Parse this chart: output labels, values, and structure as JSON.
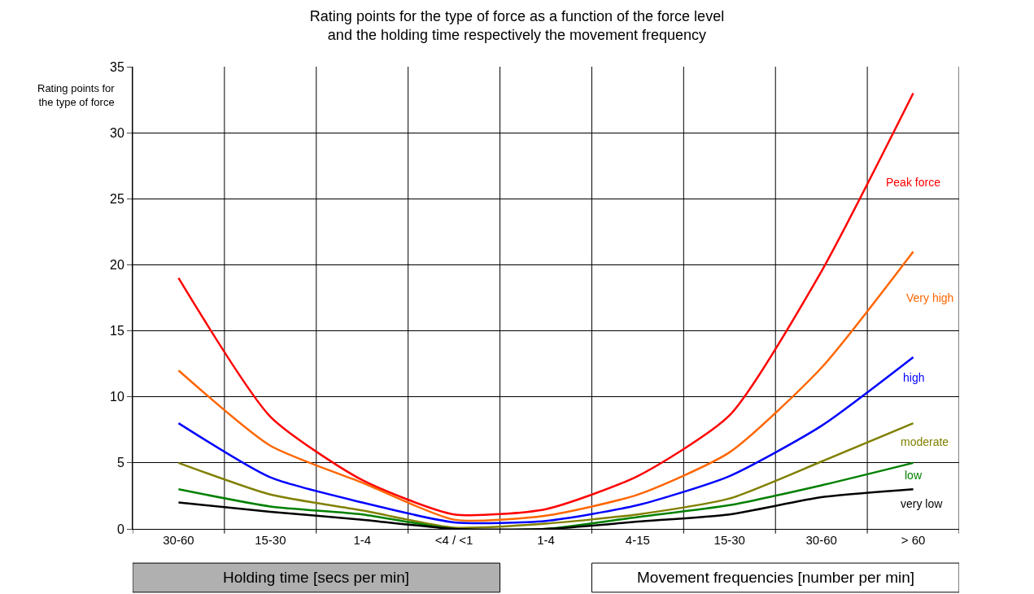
{
  "chart_data": {
    "type": "line",
    "title": "Rating points for the type of force as a function of the force level\nand the holding time respectively the movement frequency",
    "ylabel": "Rating points for\nthe type of force",
    "categories": [
      "30-60",
      "15-30",
      "1-4",
      "<4 / <1",
      "1-4",
      "4-15",
      "15-30",
      "30-60",
      "> 60"
    ],
    "series": [
      {
        "name": "Peak force",
        "color": "#ff0000",
        "values": [
          19,
          8.5,
          3.7,
          1.1,
          1.5,
          4,
          8.6,
          19.5,
          33
        ]
      },
      {
        "name": "Very high",
        "color": "#ff6600",
        "values": [
          12,
          6.3,
          3.5,
          0.7,
          1,
          2.6,
          5.8,
          12.2,
          21
        ]
      },
      {
        "name": "high",
        "color": "#0000ff",
        "values": [
          8,
          3.9,
          2,
          0.5,
          0.6,
          1.8,
          4,
          7.8,
          13
        ]
      },
      {
        "name": "moderate",
        "color": "#808000",
        "values": [
          5,
          2.6,
          1.4,
          0.1,
          0.4,
          1.1,
          2.3,
          5.1,
          8
        ]
      },
      {
        "name": "low",
        "color": "#008000",
        "values": [
          3,
          1.7,
          1.1,
          0,
          0,
          0.9,
          1.8,
          3.3,
          5
        ]
      },
      {
        "name": "very low",
        "color": "#000000",
        "values": [
          2,
          1.3,
          0.7,
          0,
          0,
          0.55,
          1.1,
          2.4,
          3
        ]
      }
    ],
    "ylim": [
      0,
      35
    ],
    "yticks": [
      0,
      5,
      10,
      15,
      20,
      25,
      30,
      35
    ],
    "grid": true,
    "line_style": "solid",
    "annotations": [
      "Holding time [secs per min]",
      "Movement frequencies [number per min]"
    ]
  }
}
